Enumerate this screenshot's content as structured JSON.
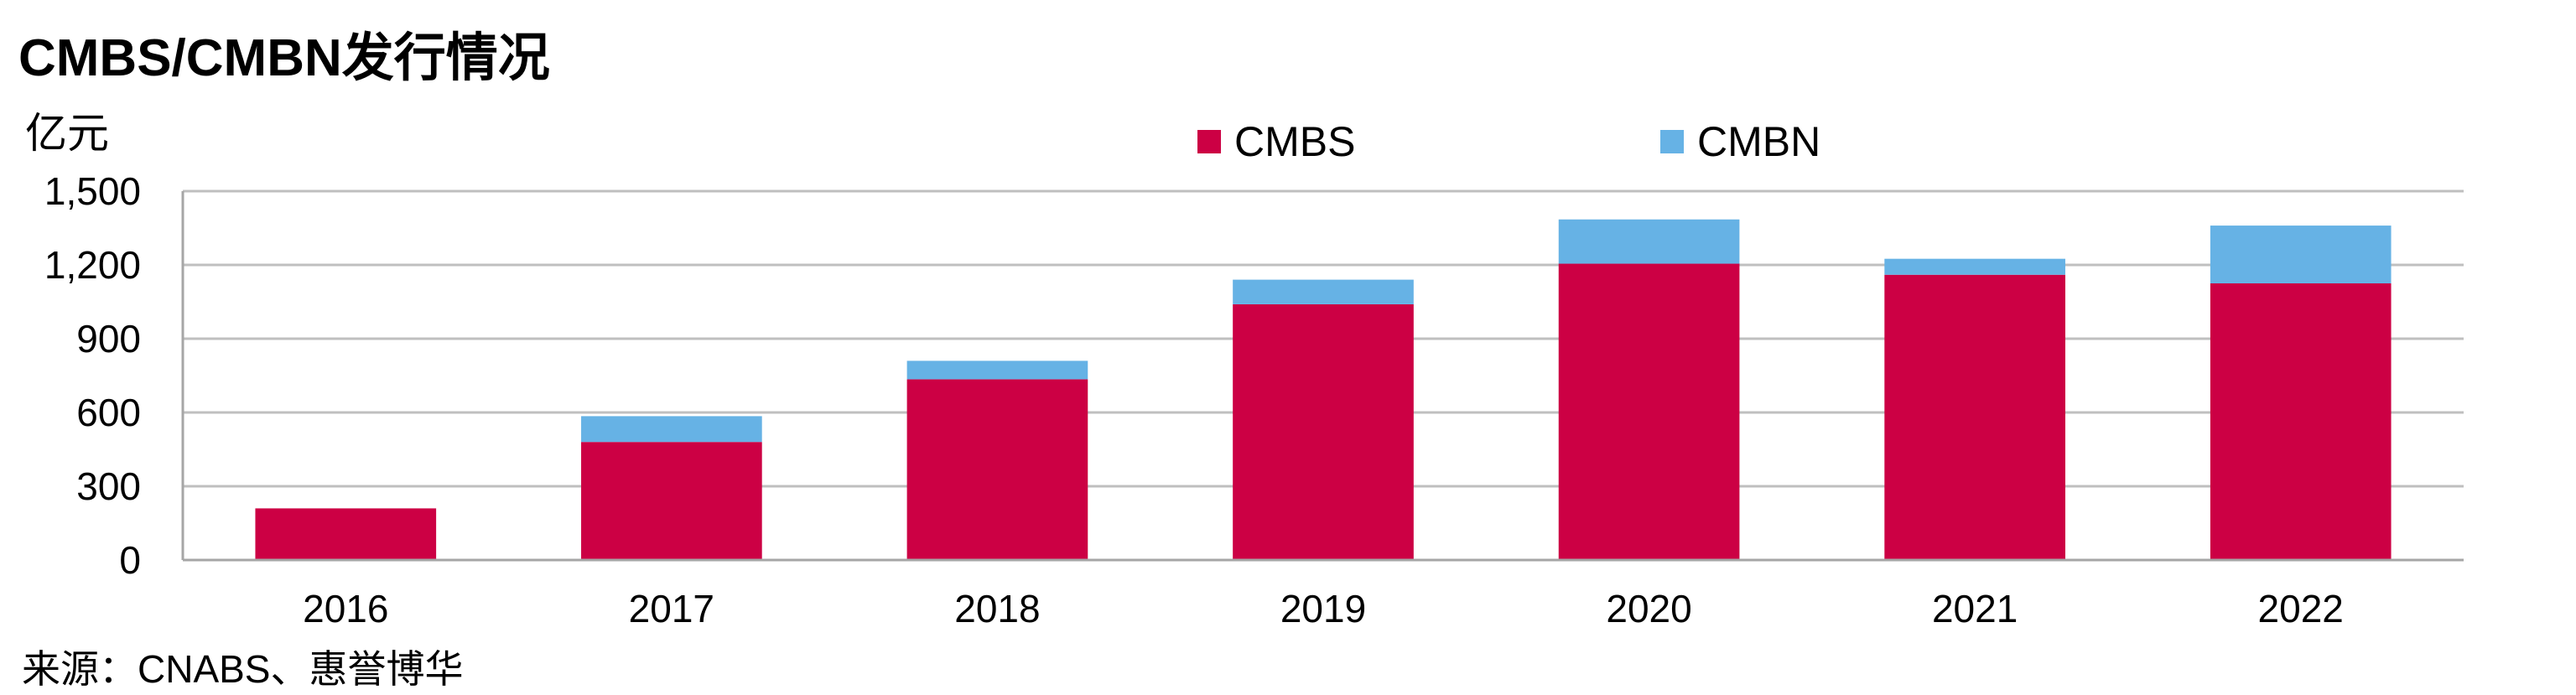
{
  "chart_data": {
    "type": "bar",
    "stacked": true,
    "title": "CMBS/CMBN发行情况",
    "unit_label": "亿元",
    "categories": [
      "2016",
      "2017",
      "2018",
      "2019",
      "2020",
      "2021",
      "2022"
    ],
    "series": [
      {
        "name": "CMBS",
        "color": "#CC0044",
        "values": [
          210,
          480,
          735,
          1040,
          1205,
          1160,
          1125
        ]
      },
      {
        "name": "CMBN",
        "color": "#66B2E5",
        "values": [
          0,
          105,
          75,
          100,
          180,
          65,
          235
        ]
      }
    ],
    "ylim": [
      0,
      1500
    ],
    "yticks": [
      0,
      300,
      600,
      900,
      1200,
      1500
    ],
    "ytick_labels": [
      "0",
      "300",
      "600",
      "900",
      "1,200",
      "1,500"
    ],
    "grid": true,
    "legend_position": "top-center"
  },
  "source": "来源：CNABS、惠誉博华"
}
